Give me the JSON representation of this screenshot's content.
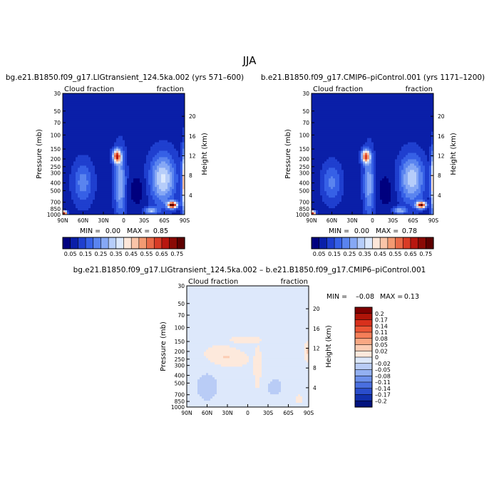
{
  "figure": {
    "season": "JJA",
    "vertical_axis_labels": {
      "left": "Pressure (mb)",
      "right": "Height (km)"
    }
  },
  "chart_data": [
    {
      "type": "heatmap",
      "title": "bg.e21.B1850.f09_g17.LIGtransient_124.5ka.002 (yrs 571–600)",
      "left_label": "Cloud fraction",
      "right_label": "fraction",
      "ylabel": "Pressure (mb)",
      "ylabel_right": "Height (km)",
      "xticks": [
        "90N",
        "60N",
        "30N",
        "0",
        "30S",
        "60S",
        "90S"
      ],
      "pressure_ticks": [
        1000,
        850,
        700,
        500,
        400,
        300,
        250,
        200,
        150,
        100,
        70,
        50,
        30
      ],
      "height_ticks": [
        4,
        8,
        12,
        16,
        20
      ],
      "min_label": "MIN =",
      "min": "0.00",
      "max_label": "MAX =",
      "max": "0.85",
      "colorbar": {
        "orientation": "horizontal",
        "labels": [
          "0.05",
          "0.15",
          "0.25",
          "0.35",
          "0.45",
          "0.55",
          "0.65",
          "0.75"
        ],
        "colors": [
          "#00007f",
          "#0a1fa8",
          "#1f3fcf",
          "#3660e6",
          "#5a84ef",
          "#86a8f5",
          "#b6cdfa",
          "#dde9fd",
          "#fde7da",
          "#f9c4a8",
          "#f39a72",
          "#e96a48",
          "#d93c26",
          "#b8170f",
          "#8a0a05",
          "#5e0000"
        ]
      },
      "field": "full"
    },
    {
      "type": "heatmap",
      "title": "b.e21.B1850.f09_g17.CMIP6–piControl.001 (yrs 1171–1200)",
      "left_label": "Cloud fraction",
      "right_label": "fraction",
      "ylabel": "Pressure (mb)",
      "ylabel_right": "Height (km)",
      "xticks": [
        "90N",
        "60N",
        "30N",
        "0",
        "30S",
        "60S",
        "90S"
      ],
      "pressure_ticks": [
        1000,
        850,
        700,
        500,
        400,
        300,
        250,
        200,
        150,
        100,
        70,
        50,
        30
      ],
      "height_ticks": [
        4,
        8,
        12,
        16,
        20
      ],
      "min_label": "MIN =",
      "min": "0.00",
      "max_label": "MAX =",
      "max": "0.78",
      "colorbar": {
        "orientation": "horizontal",
        "labels": [
          "0.05",
          "0.15",
          "0.25",
          "0.35",
          "0.45",
          "0.55",
          "0.65",
          "0.75"
        ],
        "colors": [
          "#00007f",
          "#0a1fa8",
          "#1f3fcf",
          "#3660e6",
          "#5a84ef",
          "#86a8f5",
          "#b6cdfa",
          "#dde9fd",
          "#fde7da",
          "#f9c4a8",
          "#f39a72",
          "#e96a48",
          "#d93c26",
          "#b8170f",
          "#8a0a05",
          "#5e0000"
        ]
      },
      "field": "full"
    },
    {
      "type": "heatmap",
      "title": "bg.e21.B1850.f09_g17.LIGtransient_124.5ka.002 – b.e21.B1850.f09_g17.CMIP6–piControl.001",
      "left_label": "Cloud fraction",
      "right_label": "fraction",
      "ylabel": "Pressure (mb)",
      "ylabel_right": "Height (km)",
      "xticks": [
        "90N",
        "60N",
        "30N",
        "0",
        "30S",
        "60S",
        "90S"
      ],
      "pressure_ticks": [
        1000,
        850,
        700,
        500,
        400,
        300,
        250,
        200,
        150,
        100,
        70,
        50,
        30
      ],
      "height_ticks": [
        4,
        8,
        12,
        16,
        20
      ],
      "min_label": "MIN =",
      "min": "–0.08",
      "max_label": "MAX =",
      "max": "0.13",
      "colorbar": {
        "orientation": "vertical",
        "labels": [
          "0.2",
          "0.17",
          "0.14",
          "0.11",
          "0.08",
          "0.05",
          "0.02",
          "0",
          "–0.02",
          "–0.05",
          "–0.08",
          "–0.11",
          "–0.14",
          "–0.17",
          "–0.2"
        ],
        "colors": [
          "#7f0000",
          "#b01408",
          "#d8301c",
          "#ec5636",
          "#f57e58",
          "#f9a883",
          "#fcccb3",
          "#fde9dc",
          "#dde8fb",
          "#b9ccf6",
          "#93b0f1",
          "#6c90ea",
          "#4a6fdf",
          "#2a4dcc",
          "#1230ad",
          "#03137f"
        ]
      },
      "field": "diff"
    }
  ]
}
